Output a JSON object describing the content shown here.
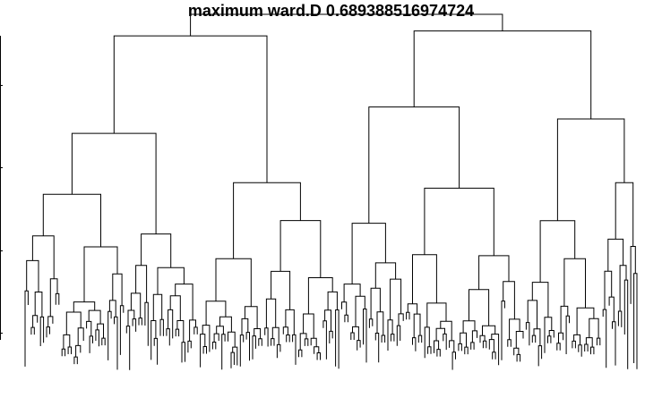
{
  "title": "maximum ward.D 0.689388516974724",
  "colors": {
    "background": "#ffffff",
    "line": "#000000",
    "text": "#000000"
  },
  "diagram": {
    "type": "dendrogram",
    "orientation": "top-down",
    "leaf_count": 200,
    "axis": "left",
    "axis_tick_labels_visible": false
  }
}
